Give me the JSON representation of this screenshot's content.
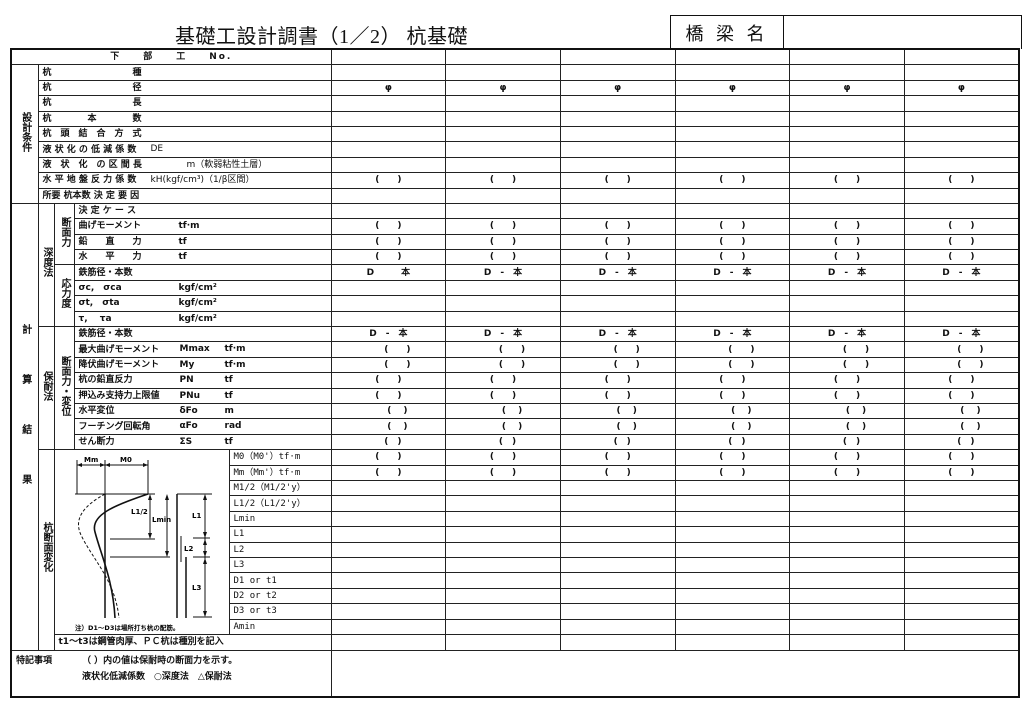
{
  "title": "基礎工設計調書（1／2） 杭基礎",
  "bridge_name_label": "橋 梁 名",
  "bridge_name_value": "",
  "header_label": "下　　部　　工　　No.",
  "design_group": "設計条件",
  "design_rows": [
    {
      "label": "杭　　　　　　　　　種",
      "suffix": "",
      "cells": [
        "",
        "",
        "",
        "",
        "",
        ""
      ]
    },
    {
      "label": "杭　　　　　　　　　径",
      "suffix": "",
      "cells": [
        "φ",
        "φ",
        "φ",
        "φ",
        "φ",
        "φ"
      ]
    },
    {
      "label": "杭　　　　　　　　　長",
      "suffix": "",
      "cells": [
        "",
        "",
        "",
        "",
        "",
        ""
      ]
    },
    {
      "label": "杭　　　　本　　　　数",
      "suffix": "",
      "cells": [
        "",
        "",
        "",
        "",
        "",
        ""
      ]
    },
    {
      "label": "杭　頭　結　合　方　式",
      "suffix": "",
      "cells": [
        "",
        "",
        "",
        "",
        "",
        ""
      ]
    },
    {
      "label": "液 状 化 の 低 減 係 数",
      "suffix": "DE",
      "cells": [
        "",
        "",
        "",
        "",
        "",
        ""
      ]
    },
    {
      "label": "液　状　化　の 区 間 長",
      "suffix": "　　　　m（軟弱粘性土層）",
      "cells": [
        "",
        "",
        "",
        "",
        "",
        ""
      ]
    },
    {
      "label": "水 平 地 盤 反 力 係 数",
      "suffix": "kH(kgf/cm³)（1/β区間）",
      "cells": [
        "(　　)",
        "(　　)",
        "(　　)",
        "(　　)",
        "(　　)",
        "(　　)"
      ]
    },
    {
      "label": "所要 杭本数 決 定 要 因",
      "suffix": "",
      "cells": [
        "",
        "",
        "",
        "",
        "",
        ""
      ]
    }
  ],
  "calc_group": "計算結果",
  "depth_group": "深度法",
  "depth_force_group": "断面力",
  "depth_stress_group": "応力度",
  "depth_rows": [
    {
      "label": "決 定 ケ ー ス",
      "unit": "",
      "cells": [
        "",
        "",
        "",
        "",
        "",
        ""
      ]
    },
    {
      "label": "曲げモーメント",
      "unit": "tf·m",
      "cells": [
        "(　　)",
        "(　　)",
        "(　　)",
        "(　　)",
        "(　　)",
        "(　　)"
      ]
    },
    {
      "label": "鉛　　直　　力",
      "unit": "tf",
      "cells": [
        "(　　)",
        "(　　)",
        "(　　)",
        "(　　)",
        "(　　)",
        "(　　)"
      ]
    },
    {
      "label": "水　　平　　力",
      "unit": "tf",
      "cells": [
        "(　　)",
        "(　　)",
        "(　　)",
        "(　　)",
        "(　　)",
        "(　　)"
      ]
    },
    {
      "label": "鉄筋径・本数",
      "unit": "",
      "cells": [
        "D　　　本",
        "D　-　本",
        "D　-　本",
        "D　-　本",
        "D　-　本",
        "D　-　本"
      ]
    },
    {
      "label": "σc,　σca",
      "unit": "kgf/cm²",
      "cells": [
        "",
        "",
        "",
        "",
        "",
        ""
      ]
    },
    {
      "label": "σt,　σta",
      "unit": "kgf/cm²",
      "cells": [
        "",
        "",
        "",
        "",
        "",
        ""
      ]
    },
    {
      "label": " τ,　 τa",
      "unit": "kgf/cm²",
      "cells": [
        "",
        "",
        "",
        "",
        "",
        ""
      ]
    }
  ],
  "hotai_group": "保耐法",
  "hotai_sub_group": "断面力・変位",
  "hotai_rows": [
    {
      "label": "鉄筋径・本数",
      "sym": "",
      "unit": "",
      "cells": [
        "D　-　本",
        "D　-　本",
        "D　-　本",
        "D　-　本",
        "D　-　本",
        "D　-　本"
      ]
    },
    {
      "label": "最大曲げモーメント",
      "sym": "Mmax",
      "unit": "tf·m",
      "cells": [
        "　　(　　)",
        "　　(　　)",
        "　　(　　)",
        "　　(　　)",
        "　　(　　)",
        "　　(　　)"
      ]
    },
    {
      "label": "降伏曲げモーメント",
      "sym": "My",
      "unit": "tf·m",
      "cells": [
        "　　(　　)",
        "　　(　　)",
        "　　(　　)",
        "　　(　　)",
        "　　(　　)",
        "　　(　　)"
      ]
    },
    {
      "label": "杭の鉛直反力",
      "sym": "PN",
      "unit": "tf",
      "cells": [
        "(　　)",
        "(　　)",
        "(　　)",
        "(　　)",
        "(　　)",
        "(　　)"
      ]
    },
    {
      "label": "押込み支持力上限値",
      "sym": "PNu",
      "unit": "tf",
      "cells": [
        "(　　)",
        "(　　)",
        "(　　)",
        "(　　)",
        "(　　)",
        "(　　)"
      ]
    },
    {
      "label": "水平変位",
      "sym": "δFo",
      "unit": "m",
      "cells": [
        "　　(　 )",
        "　　(　 )",
        "　　(　 )",
        "　　(　 )",
        "　　(　 )",
        "　　(　 )"
      ]
    },
    {
      "label": "フーチング回転角",
      "sym": "αFo",
      "unit": "rad",
      "cells": [
        "　　(　 )",
        "　　(　 )",
        "　　(　 )",
        "　　(　 )",
        "　　(　 )",
        "　　(　 )"
      ]
    },
    {
      "label": "せん断力",
      "sym": "ΣS",
      "unit": "tf",
      "cells": [
        "　(　)",
        "　(　)",
        "　(　)",
        "　(　)",
        "　(　)",
        "　(　)"
      ]
    }
  ],
  "section_group": "杭断面変化",
  "section_rows": [
    {
      "label": "M0（M0'）tf·m",
      "cells": [
        "(　　)",
        "(　　)",
        "(　　)",
        "(　　)",
        "(　　)",
        "(　　)"
      ]
    },
    {
      "label": "Mm（Mm'）tf·m",
      "cells": [
        "(　　)",
        "(　　)",
        "(　　)",
        "(　　)",
        "(　　)",
        "(　　)"
      ]
    },
    {
      "label": "M1/2（M1/2'y）",
      "cells": [
        "",
        "",
        "",
        "",
        "",
        ""
      ]
    },
    {
      "label": "L1/2（L1/2'y）",
      "cells": [
        "",
        "",
        "",
        "",
        "",
        ""
      ]
    },
    {
      "label": "Lmin",
      "cells": [
        "",
        "",
        "",
        "",
        "",
        ""
      ]
    },
    {
      "label": "L1",
      "cells": [
        "",
        "",
        "",
        "",
        "",
        ""
      ]
    },
    {
      "label": "L2",
      "cells": [
        "",
        "",
        "",
        "",
        "",
        ""
      ]
    },
    {
      "label": "L3",
      "cells": [
        "",
        "",
        "",
        "",
        "",
        ""
      ]
    },
    {
      "label": "D1 or t1",
      "cells": [
        "",
        "",
        "",
        "",
        "",
        ""
      ]
    },
    {
      "label": "D2 or t2",
      "cells": [
        "",
        "",
        "",
        "",
        "",
        ""
      ]
    },
    {
      "label": "D3 or t3",
      "cells": [
        "",
        "",
        "",
        "",
        "",
        ""
      ]
    },
    {
      "label": "Amin",
      "cells": [
        "",
        "",
        "",
        "",
        "",
        ""
      ]
    }
  ],
  "diagram": {
    "mm": "Mm",
    "m0": "M0",
    "l_half": "L1/2",
    "lmin": "Lmin",
    "l1": "L1",
    "l2": "L2",
    "l3": "L3",
    "note": "注）D1〜D3は場所打ち杭の配筋。"
  },
  "section_note": "t1〜t3は鋼管肉厚、ＰＣ杭は種別を記入",
  "remarks": {
    "label": "特記事項",
    "line1": "（ ）内の値は保耐時の断面力を示す。",
    "line2": "液状化低減係数　○深度法　△保耐法"
  }
}
